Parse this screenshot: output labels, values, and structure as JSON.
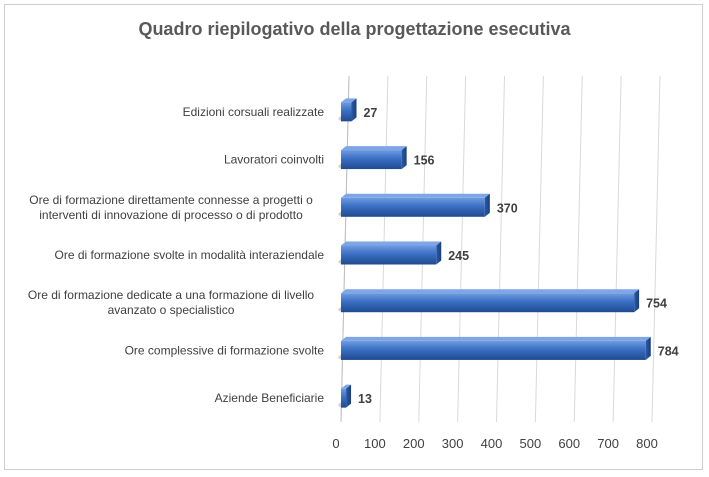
{
  "chart_data": {
    "type": "bar",
    "orientation": "horizontal",
    "title": "Quadro riepilogativo della progettazione esecutiva",
    "categories": [
      "Edizioni corsuali realizzate",
      "Lavoratori coinvolti",
      "Ore di formazione direttamente connesse a progetti o interventi di innovazione di processo o di prodotto",
      "Ore di formazione svolte in modalità interaziendale",
      "Ore di formazione dedicate a una formazione di livello avanzato o specialistico",
      "Ore complessive di formazione svolte",
      "Aziende Beneficiarie"
    ],
    "category_lines": [
      [
        "Edizioni corsuali realizzate"
      ],
      [
        "Lavoratori coinvolti"
      ],
      [
        "Ore di formazione direttamente connesse a progetti o",
        "interventi di innovazione di processo o di prodotto"
      ],
      [
        "Ore di formazione svolte in modalità interaziendale"
      ],
      [
        "Ore di formazione dedicate a una formazione di livello",
        "avanzato o specialistico"
      ],
      [
        "Ore complessive di formazione svolte"
      ],
      [
        "Aziende Beneficiarie"
      ]
    ],
    "values": [
      27,
      156,
      370,
      245,
      754,
      784,
      13
    ],
    "xlim": [
      0,
      800
    ],
    "xticks": [
      0,
      100,
      200,
      300,
      400,
      500,
      600,
      700,
      800
    ],
    "gridlines": true,
    "legend": "none",
    "bar_color": "#3a6fc4"
  }
}
